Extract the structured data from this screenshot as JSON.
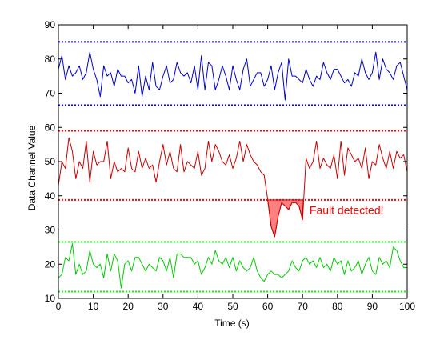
{
  "chart_data": {
    "type": "line",
    "xlabel": "Time (s)",
    "ylabel": "Data Channel Value",
    "xlim": [
      0,
      100
    ],
    "ylim": [
      10,
      90
    ],
    "x_ticks": [
      0,
      10,
      20,
      30,
      40,
      50,
      60,
      70,
      80,
      90,
      100
    ],
    "y_ticks": [
      10,
      20,
      30,
      40,
      50,
      60,
      70,
      80,
      90
    ],
    "grid": false,
    "x": [
      0,
      1,
      2,
      3,
      4,
      5,
      6,
      7,
      8,
      9,
      10,
      11,
      12,
      13,
      14,
      15,
      16,
      17,
      18,
      19,
      20,
      21,
      22,
      23,
      24,
      25,
      26,
      27,
      28,
      29,
      30,
      31,
      32,
      33,
      34,
      35,
      36,
      37,
      38,
      39,
      40,
      41,
      42,
      43,
      44,
      45,
      46,
      47,
      48,
      49,
      50,
      51,
      52,
      53,
      54,
      55,
      56,
      57,
      58,
      59,
      60,
      61,
      62,
      63,
      64,
      65,
      66,
      67,
      68,
      69,
      70,
      71,
      72,
      73,
      74,
      75,
      76,
      77,
      78,
      79,
      80,
      81,
      82,
      83,
      84,
      85,
      86,
      87,
      88,
      89,
      90,
      91,
      92,
      93,
      94,
      95,
      96,
      97,
      98,
      99,
      100
    ],
    "series": [
      {
        "color": "#0000cc",
        "values": [
          77,
          81,
          74,
          78,
          75,
          76,
          78,
          74,
          76,
          82,
          77,
          74,
          69,
          78,
          75,
          76,
          72,
          77,
          75,
          75,
          73,
          74,
          70,
          78,
          69,
          75,
          71,
          79,
          72,
          71,
          75,
          78,
          73,
          74,
          79,
          76,
          75,
          76,
          73,
          78,
          71,
          81,
          71,
          79,
          78,
          71,
          74,
          78,
          75,
          71,
          78,
          74,
          71,
          77,
          80,
          72,
          74,
          76,
          76,
          72,
          74,
          78,
          71,
          76,
          79,
          68,
          80,
          75,
          75,
          74,
          73,
          77,
          74,
          72,
          75,
          74,
          79,
          76,
          74,
          77,
          77,
          75,
          73,
          74,
          72,
          76,
          75,
          80,
          76,
          74,
          76,
          82,
          74,
          80,
          77,
          76,
          74,
          78,
          79,
          75,
          71
        ]
      },
      {
        "color": "#cc0000",
        "values": [
          43,
          50,
          48,
          57,
          53,
          45,
          50,
          48,
          56,
          44,
          53,
          49,
          50,
          50,
          56,
          45,
          50,
          47,
          48,
          47,
          54,
          48,
          47,
          53,
          48,
          51,
          48,
          49,
          44,
          50,
          55,
          49,
          53,
          48,
          47,
          55,
          47,
          50,
          49,
          48,
          53,
          46,
          48,
          56,
          50,
          55,
          53,
          50,
          49,
          52,
          48,
          51,
          56,
          50,
          55,
          52,
          50,
          49,
          47,
          46,
          39,
          31,
          28,
          34,
          38,
          37,
          36,
          38,
          38,
          37,
          33,
          51,
          48,
          50,
          56,
          48,
          51,
          49,
          48,
          52,
          45,
          56,
          46,
          54,
          52,
          50,
          51,
          48,
          54,
          45,
          50,
          49,
          55,
          51,
          48,
          53,
          48,
          53,
          51,
          52,
          47
        ]
      },
      {
        "color": "#00cc00",
        "values": [
          16,
          17,
          22,
          21,
          26,
          17,
          20,
          17,
          18,
          24,
          20,
          19,
          20,
          16,
          23,
          18,
          23,
          21,
          13,
          20,
          21,
          18,
          22,
          22,
          20,
          18,
          20,
          19,
          18,
          22,
          21,
          18,
          22,
          16,
          23,
          23,
          22,
          22,
          22,
          20,
          21,
          17,
          19,
          22,
          20,
          24,
          21,
          20,
          22,
          19,
          22,
          18,
          21,
          19,
          18,
          19,
          22,
          18,
          16,
          15,
          17,
          18,
          17,
          17,
          16,
          17,
          18,
          21,
          19,
          18,
          21,
          22,
          20,
          21,
          19,
          22,
          19,
          20,
          18,
          22,
          20,
          21,
          17,
          21,
          18,
          19,
          21,
          17,
          20,
          22,
          18,
          17,
          22,
          20,
          21,
          19,
          25,
          24,
          21,
          19,
          19
        ]
      }
    ],
    "threshold_lines": [
      {
        "y": 85,
        "color": "#0000ff"
      },
      {
        "y": 66.5,
        "color": "#0000ff"
      },
      {
        "y": 59,
        "color": "#ff0000"
      },
      {
        "y": 38.8,
        "color": "#ff0000"
      },
      {
        "y": 26.5,
        "color": "#00ff00"
      },
      {
        "y": 12,
        "color": "#00ff00"
      }
    ],
    "fault_region": {
      "x_start": 60,
      "x_end": 70,
      "threshold": 38.8,
      "fill_color": "#ff8080",
      "edge_color": "#cc0000"
    },
    "annotations": [
      {
        "text": "Fault detected!",
        "x": 72,
        "y": 34.7,
        "color": "#ff0000"
      }
    ]
  }
}
